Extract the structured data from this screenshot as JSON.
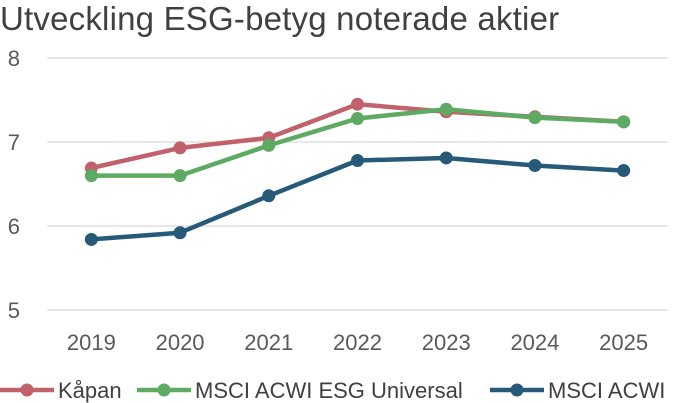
{
  "chart_data": {
    "type": "line",
    "title": "Utveckling ESG-betyg noterade aktier",
    "xlabel": "",
    "ylabel": "",
    "categories": [
      "2019",
      "2020",
      "2021",
      "2022",
      "2023",
      "2024",
      "2025"
    ],
    "ylim": [
      5,
      8
    ],
    "yticks": [
      "5",
      "6",
      "7",
      "8"
    ],
    "grid": true,
    "legend_position": "bottom",
    "series": [
      {
        "name": "Kåpan",
        "color": "#c0616b",
        "values": [
          6.69,
          6.93,
          7.05,
          7.45,
          7.36,
          7.3,
          7.24
        ]
      },
      {
        "name": "MSCI ACWI ESG Universal",
        "color": "#5daa63",
        "values": [
          6.6,
          6.6,
          6.96,
          7.28,
          7.39,
          7.29,
          7.24
        ]
      },
      {
        "name": "MSCI ACWI",
        "color": "#275a78",
        "values": [
          5.84,
          5.92,
          6.36,
          6.78,
          6.81,
          6.72,
          6.66
        ]
      }
    ]
  }
}
